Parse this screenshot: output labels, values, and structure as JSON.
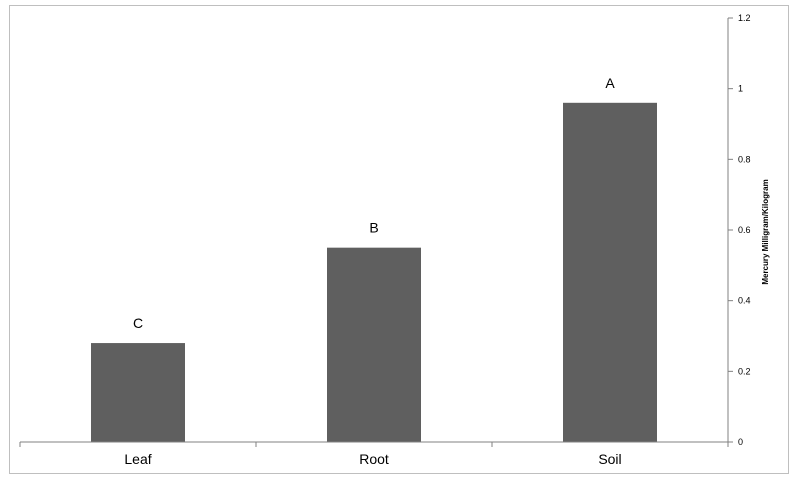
{
  "chart_data": {
    "type": "bar",
    "categories": [
      "Leaf",
      "Root",
      "Soil"
    ],
    "values": [
      0.28,
      0.55,
      0.96
    ],
    "bar_labels": [
      "C",
      "B",
      "A"
    ],
    "title": "",
    "xlabel": "",
    "ylabel": "Mercury Milligram/Kilogram",
    "ylim": [
      0,
      1.2
    ],
    "yticks": [
      0,
      0.2,
      0.4,
      0.6,
      0.8,
      1,
      1.2
    ],
    "ytick_labels": [
      "0",
      "0.2",
      "0.4",
      "0.6",
      "0.8",
      "1",
      "1.2"
    ],
    "y_axis_side": "right",
    "grid": false,
    "legend": "none",
    "bar_color": "#5f5f5f",
    "axis_color": "#808080",
    "border_color": "#bfbfbf"
  }
}
